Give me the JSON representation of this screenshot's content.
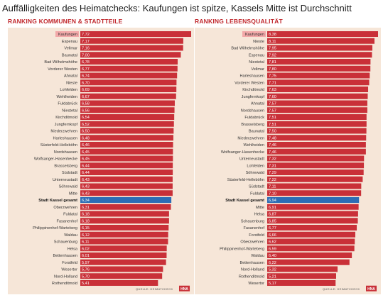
{
  "headline": "Auffälligkeiten des Heimatchecks: Kaufungen ist spitze, Kassels Mitte ist Durchschnitt",
  "colors": {
    "bar": "#c93038",
    "highlight": "#2d6db5",
    "panel_bg": "#f6e6d8",
    "title": "#c0262b",
    "first_label_bg": "#f2a8a8"
  },
  "source_label": "QUELLE: HEIMATCHECK",
  "logo_label": "HNA",
  "highlight_category": "Stadt Kassel gesamt",
  "chart_data": [
    {
      "type": "bar",
      "orientation": "horizontal",
      "title": "RANKING KOMMUNEN & STADTTEILE",
      "xlim": [
        0,
        7.72
      ],
      "categories": [
        "Kaufungen",
        "Espenau",
        "Vellmar",
        "Baunatal",
        "Bad Wilhelmshöhe",
        "Vorderer Westen",
        "Ahnatal",
        "Nieste",
        "Lohfelden",
        "Wehlheiden",
        "Fuldabrück",
        "Niestetal",
        "Kirchditmold",
        "Jungfernkopf",
        "Niederzwehren",
        "Harleshausen",
        "Süsterfeld-Helleböhn",
        "Nordshausen",
        "Wolfsanger-Hasenhecke",
        "Brasselsberg",
        "Südstadt",
        "Unterneustadt",
        "Söhrewald",
        "Mitte",
        "Stadt Kassel gesamt",
        "Oberzwehren",
        "Fuldatal",
        "Fasanenhof",
        "Philippinenhof-Warteberg",
        "Waldau",
        "Schauenburg",
        "Helsa",
        "Bettenhausen",
        "Forstfeld",
        "Wesertor",
        "Nord-Holland",
        "Rothenditmold"
      ],
      "values": [
        7.72,
        7.17,
        7.16,
        7.0,
        6.78,
        6.77,
        6.74,
        6.7,
        6.69,
        6.67,
        6.58,
        6.56,
        6.54,
        6.52,
        6.5,
        6.48,
        6.46,
        6.45,
        6.45,
        6.44,
        6.44,
        6.43,
        6.43,
        6.43,
        6.34,
        6.31,
        6.18,
        6.18,
        6.15,
        6.12,
        6.11,
        6.02,
        6.01,
        5.97,
        5.76,
        5.7,
        5.41
      ],
      "value_labels": [
        "7,72",
        "7,17",
        "7,16",
        "7,00",
        "6,78",
        "6,77",
        "6,74",
        "6,70",
        "6,69",
        "6,67",
        "6,58",
        "6,56",
        "6,54",
        "6,52",
        "6,50",
        "6,48",
        "6,46",
        "6,45",
        "6,45",
        "6,44",
        "6,44",
        "6,43",
        "6,43",
        "6,43",
        "6,34",
        "6,31",
        "6,18",
        "6,18",
        "6,15",
        "6,12",
        "6,11",
        "6,02",
        "6,01",
        "5,97",
        "5,76",
        "5,70",
        "5,41"
      ]
    },
    {
      "type": "bar",
      "orientation": "horizontal",
      "title": "RANKING LEBENSQUALITÄT",
      "xlim": [
        0,
        8.38
      ],
      "categories": [
        "Kaufungen",
        "Nieste",
        "Bad Wilhelmshöhe",
        "Espenau",
        "Niestetal",
        "Vellmar",
        "Harleshausen",
        "Vorderer Westen",
        "Kirchditmold",
        "Jungfernkopf",
        "Ahnatal",
        "Nordshausen",
        "Fuldabrück",
        "Brasselsberg",
        "Baunatal",
        "Niederzwehren",
        "Wehlheiden",
        "Wolfsanger-Hasenhecke",
        "Unterneustadt",
        "Lohfelden",
        "Söhrewald",
        "Süsterfeld-Helleböhn",
        "Südstadt",
        "Fuldatal",
        "Stadt Kassel gesamt",
        "Mitte",
        "Helsa",
        "Schauenburg",
        "Fasanenhof",
        "Forstfeld",
        "Oberzwehren",
        "Philippinenhof-Warteberg",
        "Waldau",
        "Bettenhausen",
        "Nord-Holland",
        "Rothenditmold",
        "Wesertor"
      ],
      "values": [
        8.38,
        8.11,
        7.95,
        7.92,
        7.81,
        7.8,
        7.75,
        7.71,
        7.63,
        7.6,
        7.57,
        7.57,
        7.51,
        7.51,
        7.5,
        7.48,
        7.46,
        7.46,
        7.32,
        7.31,
        7.29,
        7.22,
        7.11,
        7.1,
        6.94,
        6.91,
        6.87,
        6.85,
        6.77,
        6.66,
        6.62,
        6.59,
        6.4,
        6.22,
        5.32,
        5.21,
        5.17
      ],
      "value_labels": [
        "8,38",
        "8,11",
        "7,95",
        "7,92",
        "7,81",
        "7,80",
        "7,75",
        "7,71",
        "7,63",
        "7,60",
        "7,57",
        "7,57",
        "7,51",
        "7,51",
        "7,50",
        "7,48",
        "7,46",
        "7,46",
        "7,32",
        "7,31",
        "7,29",
        "7,22",
        "7,11",
        "7,10",
        "6,94",
        "6,91",
        "6,87",
        "6,85",
        "6,77",
        "6,66",
        "6,62",
        "6,59",
        "6,40",
        "6,22",
        "5,32",
        "5,21",
        "5,17"
      ]
    }
  ]
}
